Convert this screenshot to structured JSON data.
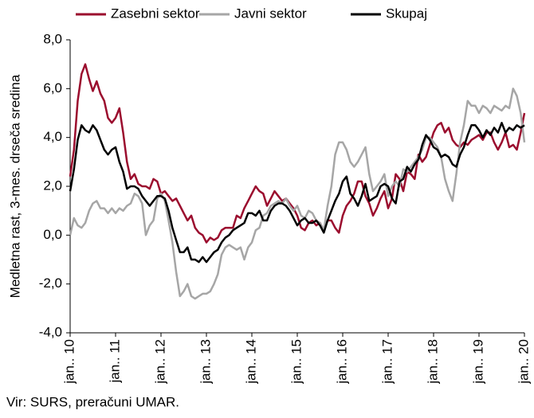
{
  "chart_data": {
    "type": "line",
    "y_label": "Medletna rast, 3-mes. drseča sredina",
    "note": "Vir: SURS, preračuni UMAR.",
    "categories": [
      "jan.. 10",
      null,
      null,
      null,
      null,
      null,
      null,
      null,
      null,
      null,
      null,
      null,
      "jan.. 11",
      null,
      null,
      null,
      null,
      null,
      null,
      null,
      null,
      null,
      null,
      null,
      "jan.. 12",
      null,
      null,
      null,
      null,
      null,
      null,
      null,
      null,
      null,
      null,
      null,
      "jan.. 13",
      null,
      null,
      null,
      null,
      null,
      null,
      null,
      null,
      null,
      null,
      null,
      "jan.. 14",
      null,
      null,
      null,
      null,
      null,
      null,
      null,
      null,
      null,
      null,
      null,
      "jan.. 15",
      null,
      null,
      null,
      null,
      null,
      null,
      null,
      null,
      null,
      null,
      null,
      "jan.. 16",
      null,
      null,
      null,
      null,
      null,
      null,
      null,
      null,
      null,
      null,
      null,
      "jan.. 17",
      null,
      null,
      null,
      null,
      null,
      null,
      null,
      null,
      null,
      null,
      null,
      "jan.. 18",
      null,
      null,
      null,
      null,
      null,
      null,
      null,
      null,
      null,
      null,
      null,
      "jan.. 19",
      null,
      null,
      null,
      null,
      null,
      null,
      null,
      null,
      null,
      null,
      null,
      "jan.. 20"
    ],
    "series": [
      {
        "name": "Zasebni sektor",
        "color": "#9b0d2e",
        "values": [
          2.4,
          3.5,
          5.5,
          6.6,
          7.0,
          6.4,
          5.9,
          6.3,
          5.8,
          5.5,
          4.8,
          4.6,
          4.8,
          5.2,
          4.2,
          3.0,
          2.3,
          2.5,
          2.1,
          2.0,
          2.0,
          1.9,
          2.3,
          2.2,
          1.7,
          1.8,
          1.6,
          1.4,
          1.5,
          1.2,
          0.9,
          0.6,
          0.8,
          0.3,
          0.1,
          0.0,
          -0.3,
          -0.1,
          -0.2,
          -0.1,
          0.2,
          0.3,
          0.3,
          0.3,
          0.8,
          0.7,
          1.1,
          1.4,
          1.7,
          2.0,
          1.8,
          1.7,
          1.2,
          1.5,
          1.8,
          1.6,
          1.4,
          1.5,
          1.3,
          1.1,
          0.8,
          0.3,
          0.2,
          0.5,
          0.6,
          0.4,
          0.5,
          0.2,
          0.6,
          0.6,
          0.3,
          0.1,
          0.8,
          1.2,
          1.4,
          1.7,
          2.2,
          2.2,
          1.6,
          1.3,
          0.8,
          1.1,
          1.5,
          1.8,
          1.1,
          1.5,
          2.5,
          2.3,
          1.8,
          2.6,
          2.5,
          2.3,
          3.3,
          3.0,
          3.2,
          3.7,
          4.2,
          4.5,
          4.6,
          4.2,
          4.4,
          3.9,
          3.7,
          3.6,
          3.8,
          3.7,
          3.9,
          4.0,
          4.1,
          3.9,
          4.2,
          4.2,
          3.8,
          3.5,
          3.8,
          4.2,
          3.6,
          3.7,
          3.5,
          4.2,
          5.0
        ]
      },
      {
        "name": "Javni sektor",
        "color": "#a6a6a6",
        "values": [
          0.0,
          0.7,
          0.4,
          0.3,
          0.5,
          1.0,
          1.3,
          1.4,
          1.1,
          1.1,
          0.9,
          1.1,
          0.9,
          1.1,
          1.0,
          1.2,
          1.3,
          1.7,
          1.6,
          1.3,
          0.0,
          0.4,
          0.6,
          1.5,
          1.7,
          1.4,
          0.6,
          -0.3,
          -1.5,
          -2.5,
          -2.3,
          -2.0,
          -2.5,
          -2.6,
          -2.5,
          -2.4,
          -2.4,
          -2.3,
          -2.0,
          -1.6,
          -0.8,
          -0.5,
          -0.4,
          -0.5,
          -0.6,
          -0.5,
          -1.0,
          -0.5,
          -0.3,
          0.2,
          0.3,
          0.8,
          0.9,
          1.2,
          1.3,
          1.4,
          1.3,
          1.5,
          1.2,
          1.0,
          1.2,
          0.8,
          0.7,
          1.0,
          0.9,
          0.6,
          0.5,
          0.2,
          1.2,
          2.0,
          3.3,
          3.8,
          3.8,
          3.5,
          3.0,
          2.8,
          3.0,
          3.3,
          3.6,
          2.5,
          1.8,
          2.0,
          2.2,
          2.5,
          1.6,
          2.0,
          2.2,
          2.0,
          2.7,
          2.6,
          2.8,
          3.0,
          3.2,
          3.5,
          4.0,
          4.0,
          3.8,
          3.6,
          3.2,
          2.3,
          1.8,
          1.4,
          2.5,
          3.8,
          4.5,
          5.5,
          5.3,
          5.3,
          5.0,
          5.3,
          5.2,
          5.0,
          5.3,
          5.2,
          5.1,
          5.3,
          5.2,
          6.0,
          5.7,
          5.0,
          3.8
        ]
      },
      {
        "name": "Skupaj",
        "color": "#000000",
        "values": [
          1.8,
          2.7,
          3.9,
          4.5,
          4.3,
          4.2,
          4.5,
          4.3,
          3.9,
          3.5,
          3.3,
          3.5,
          3.6,
          3.0,
          2.6,
          1.9,
          2.0,
          2.0,
          1.9,
          1.6,
          1.4,
          1.2,
          1.4,
          1.6,
          1.6,
          1.5,
          1.0,
          0.3,
          -0.2,
          -0.7,
          -0.7,
          -0.5,
          -1.0,
          -1.0,
          -1.1,
          -0.9,
          -1.1,
          -0.9,
          -0.7,
          -0.6,
          -0.3,
          -0.1,
          0.0,
          0.2,
          0.3,
          0.4,
          0.5,
          0.9,
          0.9,
          0.8,
          1.0,
          0.6,
          0.6,
          1.0,
          1.2,
          1.3,
          1.3,
          1.2,
          1.0,
          0.7,
          0.4,
          0.6,
          0.7,
          0.5,
          0.5,
          0.6,
          0.4,
          0.1,
          0.6,
          1.0,
          1.4,
          1.7,
          2.2,
          2.4,
          1.7,
          1.5,
          1.2,
          1.6,
          2.1,
          1.4,
          1.5,
          1.6,
          2.0,
          2.1,
          2.0,
          1.5,
          1.3,
          2.2,
          2.3,
          2.8,
          2.6,
          2.9,
          3.1,
          3.7,
          4.1,
          3.9,
          3.6,
          3.5,
          3.2,
          3.3,
          3.2,
          2.9,
          2.8,
          3.3,
          3.6,
          4.1,
          4.5,
          4.5,
          4.3,
          4.0,
          4.3,
          4.1,
          4.4,
          4.2,
          4.6,
          4.2,
          4.4,
          4.3,
          4.5,
          4.4,
          4.5
        ]
      }
    ],
    "ylim": [
      -4,
      8
    ],
    "yticks": [
      {
        "value": -4,
        "label": "-4,0"
      },
      {
        "value": -2,
        "label": "-2,0"
      },
      {
        "value": 0,
        "label": "0,0"
      },
      {
        "value": 2,
        "label": "2,0"
      },
      {
        "value": 4,
        "label": "4,0"
      },
      {
        "value": 6,
        "label": "6,0"
      },
      {
        "value": 8,
        "label": "8,0"
      }
    ],
    "grid": false,
    "legend": "top"
  }
}
